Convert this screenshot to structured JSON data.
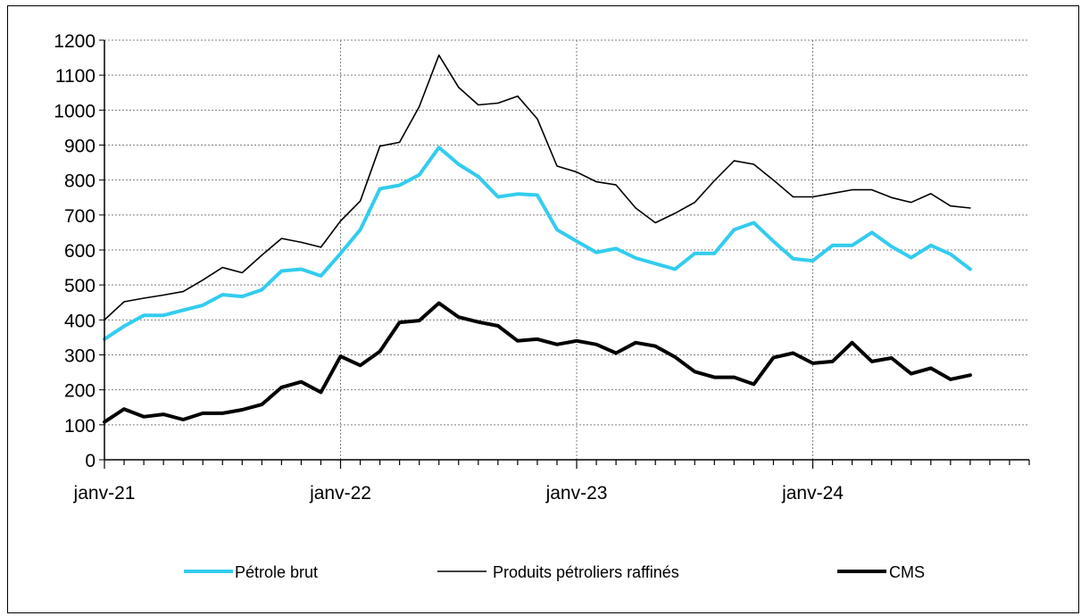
{
  "chart_data": {
    "type": "line",
    "x": [
      "janv-21",
      "févr-21",
      "mars-21",
      "avr-21",
      "mai-21",
      "juin-21",
      "juil-21",
      "août-21",
      "sept-21",
      "oct-21",
      "nov-21",
      "déc-21",
      "janv-22",
      "févr-22",
      "mars-22",
      "avr-22",
      "mai-22",
      "juin-22",
      "juil-22",
      "août-22",
      "sept-22",
      "oct-22",
      "nov-22",
      "déc-22",
      "janv-23",
      "févr-23",
      "mars-23",
      "avr-23",
      "mai-23",
      "juin-23",
      "juil-23",
      "août-23",
      "sept-23",
      "oct-23",
      "nov-23",
      "déc-23",
      "janv-24",
      "févr-24",
      "mars-24",
      "avr-24",
      "mai-24",
      "juin-24",
      "juil-24",
      "août-24",
      "sept-24"
    ],
    "x_tick_labels": [
      "janv-21",
      "janv-22",
      "janv-23",
      "janv-24"
    ],
    "ylim": [
      0,
      1200
    ],
    "y_ticks": [
      0,
      100,
      200,
      300,
      400,
      500,
      600,
      700,
      800,
      900,
      1000,
      1100,
      1200
    ],
    "grid": true,
    "legend_position": "bottom",
    "series": [
      {
        "name": "Pétrole brut",
        "color": "#33ccee",
        "values": [
          345,
          382,
          413,
          413,
          428,
          442,
          472,
          467,
          486,
          540,
          545,
          526,
          590,
          658,
          775,
          785,
          815,
          893,
          845,
          810,
          752,
          760,
          757,
          658,
          625,
          593,
          604,
          577,
          561,
          545,
          590,
          590,
          658,
          678,
          625,
          575,
          569,
          613,
          613,
          650,
          610,
          578,
          613,
          588,
          545
        ]
      },
      {
        "name": "Produits pétroliers raffinés",
        "color": "#000000",
        "values": [
          400,
          452,
          462,
          471,
          481,
          514,
          550,
          535,
          585,
          633,
          622,
          608,
          683,
          740,
          897,
          908,
          1010,
          1157,
          1065,
          1015,
          1020,
          1040,
          975,
          840,
          823,
          795,
          786,
          720,
          678,
          705,
          736,
          798,
          855,
          845,
          800,
          752,
          752,
          762,
          772,
          772,
          750,
          736,
          761,
          726,
          720
        ]
      },
      {
        "name": "CMS",
        "color": "#000000",
        "values": [
          108,
          145,
          123,
          130,
          115,
          133,
          133,
          143,
          158,
          207,
          223,
          193,
          296,
          270,
          310,
          393,
          398,
          448,
          408,
          394,
          383,
          340,
          345,
          330,
          340,
          330,
          305,
          335,
          325,
          294,
          252,
          236,
          236,
          216,
          292,
          305,
          276,
          281,
          335,
          281,
          291,
          246,
          262,
          230,
          242
        ]
      }
    ]
  }
}
